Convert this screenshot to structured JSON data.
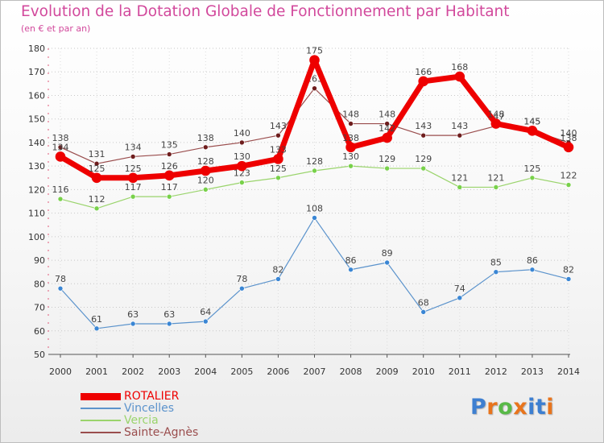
{
  "header": {
    "title": "Evolution de la Dotation Globale de Fonctionnement par Habitant",
    "subtitle": "(en € et par an)"
  },
  "logo": {
    "text": "Proxiti",
    "colors": [
      "#3d7fd1",
      "#e8741c",
      "#58b947",
      "#e8741c",
      "#3d7fd1",
      "#3d7fd1",
      "#e8741c"
    ]
  },
  "chart_data": {
    "type": "line",
    "title": "Evolution de la Dotation Globale de Fonctionnement par Habitant",
    "subtitle": "(en € et par an)",
    "xlabel": "",
    "ylabel": "",
    "categories": [
      "2000",
      "2001",
      "2002",
      "2003",
      "2004",
      "2005",
      "2006",
      "2007",
      "2008",
      "2009",
      "2010",
      "2011",
      "2012",
      "2013",
      "2014"
    ],
    "ylim": [
      50,
      180
    ],
    "yticks": [
      50,
      60,
      70,
      80,
      90,
      100,
      110,
      120,
      130,
      140,
      150,
      160,
      170,
      180
    ],
    "grid": "horizontal dotted",
    "legend": "bottom-left",
    "series": [
      {
        "name": "Vincelles",
        "color": "#5b93cc",
        "marker": "#3a86d4",
        "width": 1.2,
        "values": [
          78,
          61,
          63,
          63,
          64,
          78,
          82,
          108,
          86,
          89,
          68,
          74,
          85,
          86,
          82
        ],
        "labels": [
          "78",
          "61",
          "63",
          "63",
          "64",
          "78",
          "82",
          "108",
          "86",
          "89",
          "68",
          "74",
          "85",
          "86",
          "82"
        ]
      },
      {
        "name": "Vercia",
        "color": "#9ad46c",
        "marker": "#78d14a",
        "width": 1.2,
        "values": [
          116,
          112,
          117,
          117,
          120,
          123,
          125,
          128,
          130,
          129,
          129,
          121,
          121,
          125,
          122
        ],
        "labels": [
          "116",
          "112",
          "117",
          "117",
          "120",
          "123",
          "125",
          "128",
          "130",
          "129",
          "129",
          "121",
          "121",
          "125",
          "122"
        ]
      },
      {
        "name": "Sainte-Agnès",
        "color": "#9a4d4d",
        "marker": "#6e1d1d",
        "width": 1.2,
        "values": [
          138,
          131,
          134,
          135,
          138,
          140,
          143,
          163,
          148,
          148,
          143,
          143,
          147,
          145,
          140
        ],
        "labels": [
          "138",
          "131",
          "134",
          "135",
          "138",
          "140",
          "143",
          "163",
          "148",
          "148",
          "143",
          "143",
          "147",
          "145",
          "140"
        ]
      },
      {
        "name": "ROTALIER",
        "color": "#ee0000",
        "marker": "#ee0000",
        "width": 7,
        "values": [
          134,
          125,
          125,
          126,
          128,
          130,
          133,
          175,
          138,
          142,
          166,
          168,
          148,
          145,
          138
        ],
        "labels": [
          "134",
          "125",
          "125",
          "126",
          "128",
          "130",
          "133",
          "175",
          "138",
          "142",
          "166",
          "168",
          "148",
          "145",
          "138"
        ]
      }
    ]
  },
  "legend": {
    "items": [
      {
        "label": "ROTALIER",
        "color": "#ee0000"
      },
      {
        "label": "Vincelles",
        "color": "#5b93cc"
      },
      {
        "label": "Vercia",
        "color": "#9ad46c"
      },
      {
        "label": "Sainte-Agnès",
        "color": "#9a4d4d"
      }
    ]
  }
}
